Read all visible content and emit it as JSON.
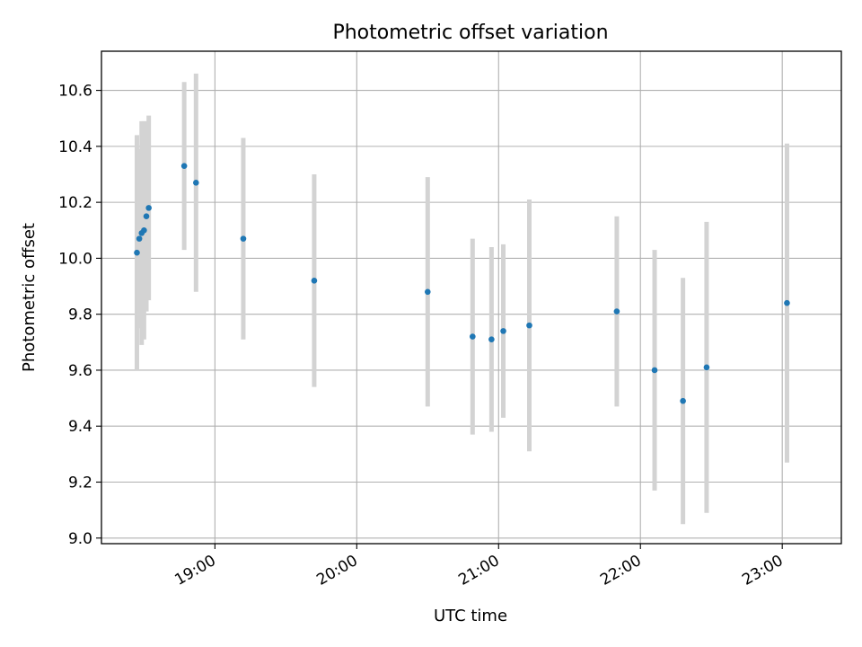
{
  "chart_data": {
    "type": "scatter",
    "title": "Photometric offset variation",
    "xlabel": "UTC time",
    "ylabel": "Photometric offset",
    "grid": true,
    "xlim": [
      "18:12",
      "23:25"
    ],
    "ylim": [
      8.98,
      10.74
    ],
    "xticks": [
      "19:00",
      "20:00",
      "21:00",
      "22:00",
      "23:00"
    ],
    "yticks": [
      9.0,
      9.2,
      9.4,
      9.6,
      9.8,
      10.0,
      10.2,
      10.4,
      10.6
    ],
    "colors": {
      "points": "#1f77b4",
      "errorbars": "#d3d3d3",
      "grid": "#b0b0b0"
    },
    "points": [
      {
        "time": "18:27",
        "y": 10.02,
        "err": 0.42
      },
      {
        "time": "18:28",
        "y": 10.07,
        "err": 0.32
      },
      {
        "time": "18:29",
        "y": 10.09,
        "err": 0.4
      },
      {
        "time": "18:30",
        "y": 10.1,
        "err": 0.39
      },
      {
        "time": "18:31",
        "y": 10.15,
        "err": 0.34
      },
      {
        "time": "18:32",
        "y": 10.18,
        "err": 0.33
      },
      {
        "time": "18:47",
        "y": 10.33,
        "err": 0.3
      },
      {
        "time": "18:52",
        "y": 10.27,
        "err": 0.39
      },
      {
        "time": "19:12",
        "y": 10.07,
        "err": 0.36
      },
      {
        "time": "19:42",
        "y": 9.92,
        "err": 0.38
      },
      {
        "time": "20:30",
        "y": 9.88,
        "err": 0.41
      },
      {
        "time": "20:49",
        "y": 9.72,
        "err": 0.35
      },
      {
        "time": "20:57",
        "y": 9.71,
        "err": 0.33
      },
      {
        "time": "21:02",
        "y": 9.74,
        "err": 0.31
      },
      {
        "time": "21:13",
        "y": 9.76,
        "err": 0.45
      },
      {
        "time": "21:50",
        "y": 9.81,
        "err": 0.34
      },
      {
        "time": "22:06",
        "y": 9.6,
        "err": 0.43
      },
      {
        "time": "22:18",
        "y": 9.49,
        "err": 0.44
      },
      {
        "time": "22:28",
        "y": 9.61,
        "err": 0.52
      },
      {
        "time": "23:02",
        "y": 9.84,
        "err": 0.57
      }
    ]
  }
}
